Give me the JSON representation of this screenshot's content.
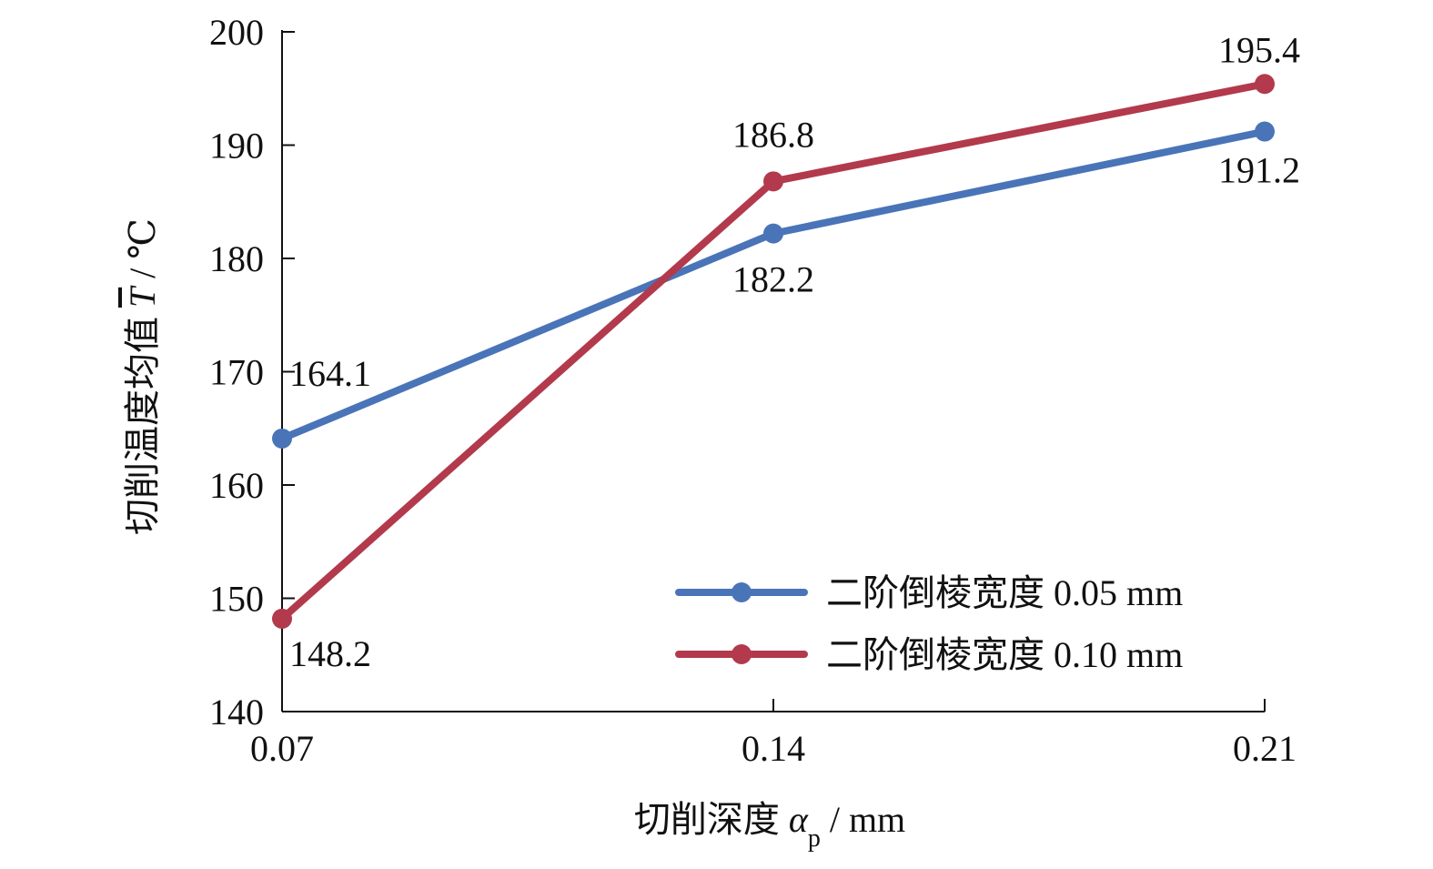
{
  "chart_data": {
    "type": "line",
    "x": [
      0.07,
      0.14,
      0.21
    ],
    "x_tick_labels": [
      "0.07",
      "0.14",
      "0.21"
    ],
    "y_ticks": [
      140,
      150,
      160,
      170,
      180,
      190,
      200
    ],
    "y_tick_labels": [
      "140",
      "150",
      "160",
      "170",
      "180",
      "190",
      "200"
    ],
    "ylim": [
      140,
      200
    ],
    "xlim": [
      0.07,
      0.21
    ],
    "xlabel": "切削深度 αp / mm",
    "xlabel_prefix": "切削深度 ",
    "xlabel_symbol": "α",
    "xlabel_subscript": "p",
    "xlabel_suffix": " / mm",
    "ylabel": "切削温度均值 T / ℃",
    "ylabel_prefix": "切削温度均值 ",
    "ylabel_symbol": "T",
    "ylabel_suffix": " / ℃",
    "legend_position": "bottom-right",
    "grid": false,
    "series": [
      {
        "name": "二阶倒棱宽度 0.05 mm",
        "color": "#4a74b8",
        "values": [
          164.1,
          182.2,
          191.2
        ],
        "value_labels": [
          "164.1",
          "182.2",
          "191.2"
        ],
        "label_placement": [
          "above",
          "below",
          "below"
        ]
      },
      {
        "name": "二阶倒棱宽度 0.10 mm",
        "color": "#b23a4c",
        "values": [
          148.2,
          186.8,
          195.4
        ],
        "value_labels": [
          "148.2",
          "186.8",
          "195.4"
        ],
        "label_placement": [
          "below",
          "above",
          "above"
        ]
      }
    ]
  }
}
